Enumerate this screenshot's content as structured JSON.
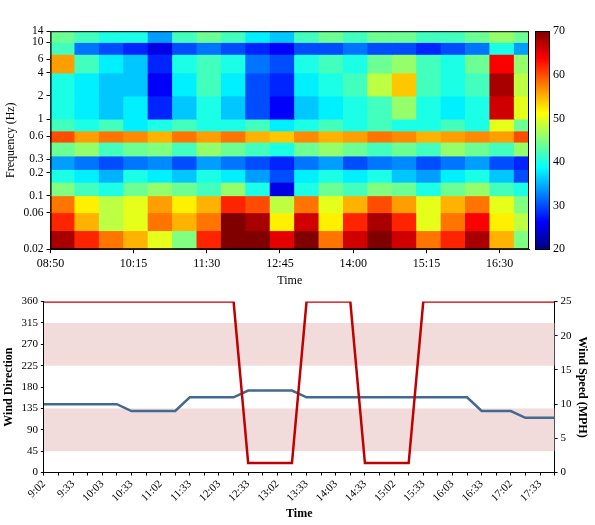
{
  "chart_data": [
    {
      "type": "heatmap",
      "x_label": "Time",
      "y_label": "Frequency (Hz)",
      "log": "y",
      "grid": false,
      "xlim": [
        530,
        1020
      ],
      "xticks": [
        {
          "value": 530,
          "label": "08:50"
        },
        {
          "value": 615,
          "label": "10:15"
        },
        {
          "value": 690,
          "label": "11:30"
        },
        {
          "value": 765,
          "label": "12:45"
        },
        {
          "value": 840,
          "label": "14:00"
        },
        {
          "value": 915,
          "label": "15:15"
        },
        {
          "value": 990,
          "label": "16:30"
        }
      ],
      "ylim": [
        0.02,
        14
      ],
      "yticks": [
        0.02,
        0.06,
        0.1,
        0.2,
        0.3,
        0.6,
        1,
        2,
        4,
        6,
        10,
        14
      ],
      "x_edges": [
        530,
        555,
        580,
        605,
        630,
        655,
        680,
        705,
        730,
        755,
        780,
        805,
        830,
        855,
        880,
        905,
        930,
        955,
        980,
        1005,
        1020
      ],
      "y_edges": [
        0.02,
        0.035,
        0.06,
        0.1,
        0.15,
        0.22,
        0.33,
        0.5,
        0.7,
        1,
        2,
        4,
        7,
        10,
        14
      ],
      "cells": [
        [
          68,
          62,
          58,
          55,
          50,
          45,
          62,
          70,
          72,
          65,
          70,
          58,
          66,
          70,
          66,
          58,
          62,
          68,
          55,
          45
        ],
        [
          62,
          55,
          48,
          50,
          58,
          55,
          58,
          70,
          68,
          52,
          66,
          52,
          62,
          68,
          62,
          50,
          58,
          64,
          52,
          48
        ],
        [
          58,
          52,
          48,
          50,
          56,
          52,
          55,
          62,
          60,
          48,
          58,
          50,
          55,
          60,
          56,
          50,
          55,
          58,
          50,
          45
        ],
        [
          45,
          42,
          40,
          44,
          46,
          44,
          42,
          46,
          40,
          25,
          40,
          44,
          42,
          45,
          44,
          40,
          44,
          46,
          42,
          40
        ],
        [
          40,
          38,
          35,
          40,
          38,
          36,
          40,
          38,
          34,
          30,
          38,
          40,
          38,
          40,
          36,
          34,
          38,
          40,
          36,
          30
        ],
        [
          34,
          32,
          30,
          32,
          33,
          30,
          34,
          32,
          30,
          28,
          32,
          34,
          30,
          32,
          33,
          30,
          32,
          34,
          30,
          28
        ],
        [
          44,
          46,
          42,
          44,
          45,
          42,
          46,
          44,
          42,
          40,
          44,
          46,
          44,
          42,
          44,
          42,
          46,
          44,
          42,
          46
        ],
        [
          60,
          56,
          58,
          57,
          55,
          58,
          56,
          58,
          55,
          54,
          57,
          55,
          56,
          58,
          57,
          55,
          56,
          57,
          56,
          60
        ],
        [
          42,
          40,
          42,
          38,
          40,
          42,
          40,
          40,
          42,
          38,
          40,
          42,
          40,
          42,
          40,
          40,
          42,
          40,
          50,
          44
        ],
        [
          40,
          38,
          36,
          38,
          28,
          36,
          40,
          36,
          30,
          26,
          36,
          38,
          40,
          42,
          46,
          40,
          38,
          40,
          66,
          50
        ],
        [
          40,
          38,
          36,
          36,
          26,
          38,
          42,
          38,
          30,
          28,
          38,
          40,
          42,
          48,
          54,
          42,
          40,
          42,
          68,
          48
        ],
        [
          56,
          42,
          38,
          36,
          28,
          40,
          42,
          40,
          32,
          30,
          40,
          42,
          40,
          44,
          46,
          42,
          40,
          44,
          64,
          46
        ],
        [
          42,
          32,
          30,
          28,
          25,
          30,
          32,
          30,
          28,
          26,
          30,
          30,
          32,
          30,
          30,
          28,
          30,
          32,
          40,
          34
        ],
        [
          44,
          42,
          40,
          40,
          34,
          42,
          44,
          42,
          38,
          36,
          42,
          44,
          42,
          44,
          44,
          42,
          42,
          44,
          46,
          44
        ]
      ],
      "colorbar": {
        "range": [
          20,
          70
        ],
        "ticks": [
          20,
          30,
          40,
          50,
          60,
          70
        ]
      }
    },
    {
      "type": "line",
      "x_label": "Time",
      "y_label": "Wind Direction",
      "y2_label": "Wind Speed (MPH)",
      "grid": false,
      "categories": [
        "9:02",
        null,
        "9:33",
        null,
        "10:03",
        null,
        "10:33",
        null,
        "11:02",
        null,
        "11:33",
        null,
        "12:03",
        null,
        "12:33",
        null,
        "13:02",
        null,
        "13:33",
        null,
        "14:03",
        null,
        "14:33",
        null,
        "15:02",
        null,
        "15:33",
        null,
        "16:03",
        null,
        "16:33",
        null,
        "17:02",
        null,
        "17:33",
        null
      ],
      "series": [
        {
          "name": "Wind Direction",
          "color": "#c00000",
          "values": [
            360,
            360,
            360,
            360,
            360,
            360,
            360,
            360,
            360,
            360,
            360,
            360,
            360,
            360,
            20,
            20,
            20,
            20,
            360,
            360,
            360,
            360,
            20,
            20,
            20,
            20,
            360,
            360,
            360,
            360,
            360,
            360,
            360,
            360,
            360,
            360
          ]
        },
        {
          "name": "Wind Speed (MPH)",
          "color": "#44698f",
          "axis": "y2",
          "values": [
            10,
            10,
            10,
            10,
            10,
            10,
            9,
            9,
            9,
            9,
            11,
            11,
            11,
            11,
            12,
            12,
            12,
            12,
            11,
            11,
            11,
            11,
            11,
            11,
            11,
            11,
            11,
            11,
            11,
            11,
            9,
            9,
            9,
            8,
            8,
            8
          ]
        }
      ],
      "ylim": [
        0,
        360
      ],
      "yticks": [
        0,
        45,
        90,
        135,
        180,
        225,
        270,
        315,
        360
      ],
      "y2lim": [
        0,
        25
      ],
      "y2ticks": [
        0,
        5,
        10,
        15,
        20,
        25
      ],
      "bands": [
        {
          "from": 45,
          "to": 135,
          "color": "#f2dcdb"
        },
        {
          "from": 225,
          "to": 315,
          "color": "#f2dcdb"
        }
      ]
    }
  ]
}
